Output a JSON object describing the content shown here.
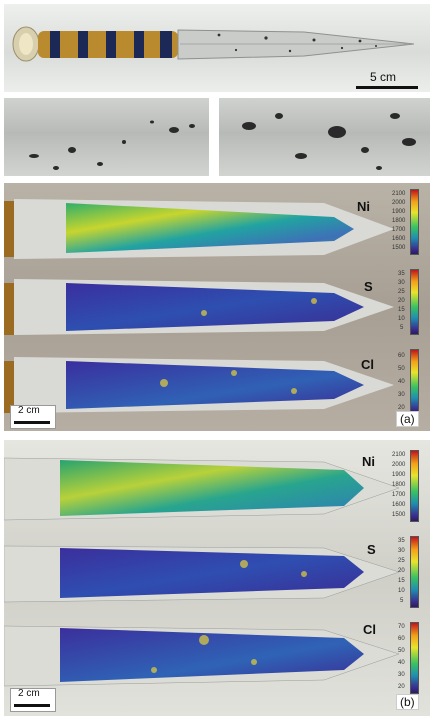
{
  "top_photo": {
    "scale_label": "5 cm"
  },
  "panel_a": {
    "label": "(a)",
    "scale_label": "2 cm",
    "maps": [
      {
        "element": "Ni",
        "ticks": [
          "2100",
          "2000",
          "1900",
          "1800",
          "1700",
          "1600",
          "1500"
        ]
      },
      {
        "element": "S",
        "ticks": [
          "35",
          "30",
          "25",
          "20",
          "15",
          "10",
          "5"
        ]
      },
      {
        "element": "Cl",
        "ticks": [
          "60",
          "50",
          "40",
          "30",
          "20"
        ]
      }
    ]
  },
  "panel_b": {
    "label": "(b)",
    "scale_label": "2 cm",
    "maps": [
      {
        "element": "Ni",
        "ticks": [
          "2100",
          "2000",
          "1900",
          "1800",
          "1700",
          "1600",
          "1500"
        ]
      },
      {
        "element": "S",
        "ticks": [
          "35",
          "30",
          "25",
          "20",
          "15",
          "10",
          "5"
        ]
      },
      {
        "element": "Cl",
        "ticks": [
          "70",
          "60",
          "50",
          "40",
          "30",
          "20"
        ]
      }
    ]
  }
}
